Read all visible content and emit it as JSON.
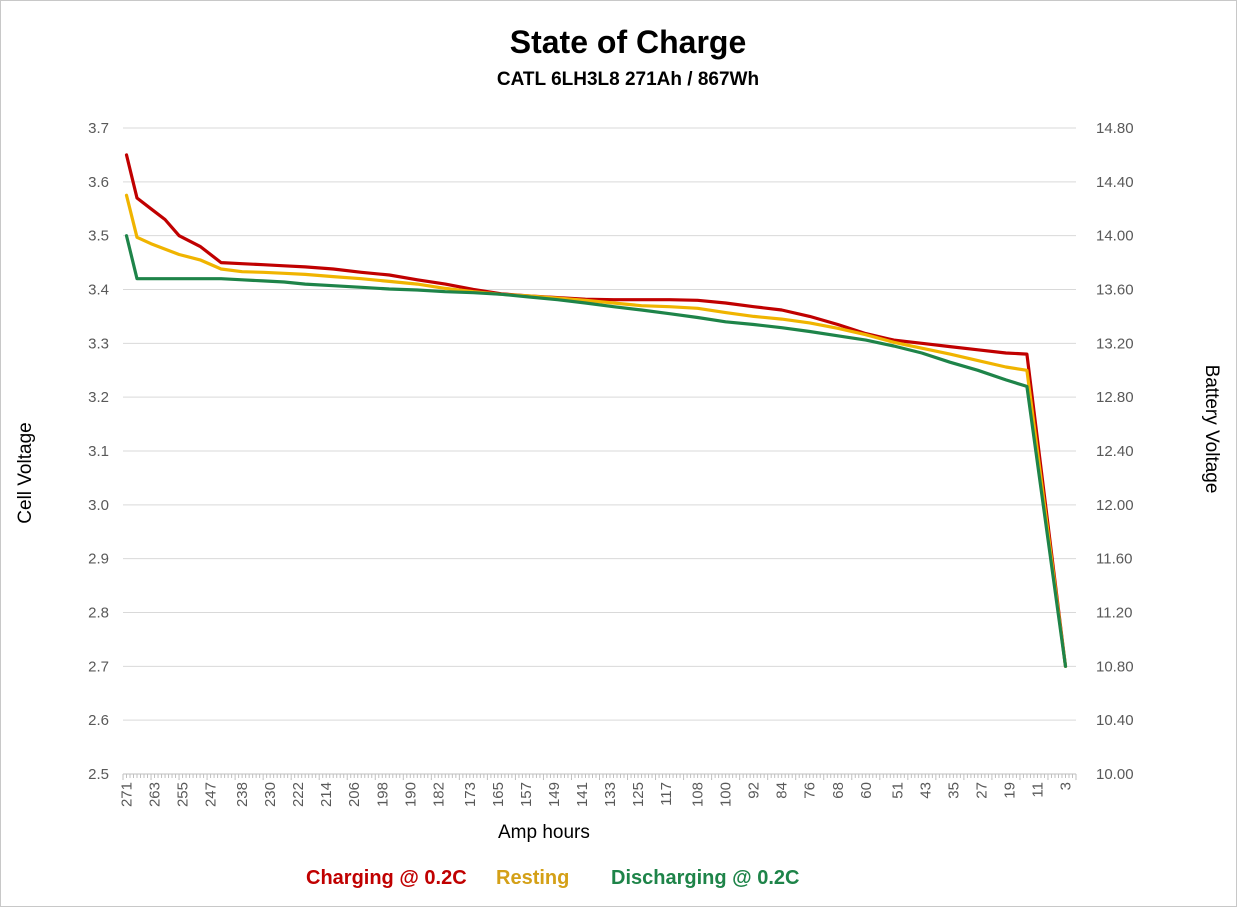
{
  "chart_data": {
    "type": "line",
    "title": "State of Charge",
    "subtitle": "CATL 6LH3L8 271Ah / 867Wh",
    "xlabel": "Amp hours",
    "ylabel": "Cell Voltage",
    "ylabel_right": "Battery Voltage",
    "ylim": [
      2.5,
      3.7
    ],
    "ylim_right": [
      10.0,
      14.8
    ],
    "yticks": [
      "2.5",
      "2.6",
      "2.7",
      "2.8",
      "2.9",
      "3.0",
      "3.1",
      "3.2",
      "3.3",
      "3.4",
      "3.5",
      "3.6",
      "3.7"
    ],
    "yticks_right": [
      "10.00",
      "10.40",
      "10.80",
      "11.20",
      "11.60",
      "12.00",
      "12.40",
      "12.80",
      "13.20",
      "13.60",
      "14.00",
      "14.40",
      "14.80"
    ],
    "x_ticks": [
      "271",
      "263",
      "255",
      "247",
      "238",
      "230",
      "222",
      "214",
      "206",
      "198",
      "190",
      "182",
      "173",
      "165",
      "157",
      "149",
      "141",
      "133",
      "125",
      "117",
      "108",
      "100",
      "92",
      "84",
      "76",
      "68",
      "60",
      "51",
      "43",
      "35",
      "27",
      "19",
      "11",
      "3"
    ],
    "grid": true,
    "legend_position": "bottom",
    "series": [
      {
        "name": "Charging @ 0.2C",
        "color": "#c00000",
        "x": [
          271,
          268,
          264,
          260,
          256,
          250,
          244,
          238,
          232,
          226,
          220,
          212,
          204,
          196,
          188,
          180,
          172,
          164,
          156,
          148,
          140,
          132,
          124,
          116,
          108,
          100,
          92,
          84,
          76,
          68,
          60,
          52,
          44,
          36,
          28,
          20,
          14,
          3
        ],
        "values": [
          3.65,
          3.57,
          3.55,
          3.53,
          3.5,
          3.48,
          3.45,
          3.448,
          3.446,
          3.444,
          3.442,
          3.438,
          3.432,
          3.427,
          3.418,
          3.41,
          3.4,
          3.392,
          3.388,
          3.385,
          3.382,
          3.381,
          3.381,
          3.381,
          3.38,
          3.375,
          3.368,
          3.362,
          3.35,
          3.335,
          3.318,
          3.306,
          3.3,
          3.294,
          3.288,
          3.282,
          3.28,
          2.7
        ]
      },
      {
        "name": "Resting",
        "color": "#f0b400",
        "x": [
          271,
          268,
          264,
          260,
          256,
          250,
          244,
          238,
          232,
          226,
          220,
          212,
          204,
          196,
          188,
          180,
          172,
          164,
          156,
          148,
          140,
          132,
          124,
          116,
          108,
          100,
          92,
          84,
          76,
          68,
          60,
          52,
          44,
          36,
          28,
          20,
          14,
          3
        ],
        "values": [
          3.575,
          3.497,
          3.485,
          3.475,
          3.465,
          3.455,
          3.438,
          3.433,
          3.432,
          3.43,
          3.428,
          3.424,
          3.42,
          3.415,
          3.41,
          3.402,
          3.396,
          3.391,
          3.388,
          3.384,
          3.38,
          3.375,
          3.37,
          3.368,
          3.365,
          3.357,
          3.35,
          3.345,
          3.338,
          3.328,
          3.316,
          3.302,
          3.291,
          3.28,
          3.268,
          3.256,
          3.25,
          2.7
        ]
      },
      {
        "name": "Discharging @ 0.2C",
        "color": "#1e8449",
        "x": [
          271,
          268,
          264,
          260,
          256,
          250,
          244,
          238,
          232,
          226,
          220,
          212,
          204,
          196,
          188,
          180,
          172,
          164,
          156,
          148,
          140,
          132,
          124,
          116,
          108,
          100,
          92,
          84,
          76,
          68,
          60,
          52,
          44,
          36,
          28,
          20,
          14,
          3
        ],
        "values": [
          3.5,
          3.42,
          3.42,
          3.42,
          3.42,
          3.42,
          3.42,
          3.418,
          3.416,
          3.414,
          3.41,
          3.407,
          3.404,
          3.401,
          3.399,
          3.396,
          3.394,
          3.391,
          3.386,
          3.381,
          3.375,
          3.368,
          3.362,
          3.355,
          3.348,
          3.34,
          3.335,
          3.329,
          3.322,
          3.314,
          3.306,
          3.295,
          3.282,
          3.265,
          3.25,
          3.232,
          3.22,
          2.7
        ]
      }
    ]
  }
}
